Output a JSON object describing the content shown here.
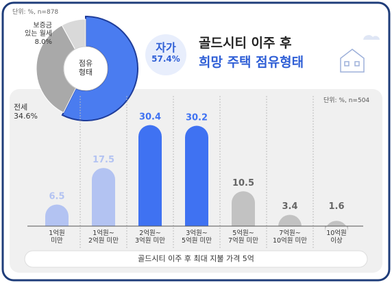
{
  "chart_data": [
    {
      "type": "pie",
      "title": "골드시티 이주 후",
      "subtitle": "희망 주택 점유형태",
      "unit": "단위: %, n=878",
      "center_label": "점유\n형태",
      "categories": [
        "자가",
        "전세",
        "보증금\n있는 월세"
      ],
      "values": [
        57.4,
        34.6,
        8.0
      ],
      "value_labels": [
        "57.4%",
        "34.6%",
        "8.0%"
      ],
      "colors": [
        "#4a7cf0",
        "#a9a9a9",
        "#d9d9d9"
      ]
    },
    {
      "type": "bar",
      "unit": "단위: %, n=504",
      "x_label": "골드시티 이주 후 최대 지불 가격 5억",
      "categories": [
        "1억원\n미만",
        "1억원~\n2억원 미만",
        "2억원~\n3억원 미만",
        "3억원~\n5억원 미만",
        "5억원~\n7억원 미만",
        "7억원~\n10억원 미만",
        "10억원\n이상"
      ],
      "values": [
        6.5,
        17.5,
        30.4,
        30.2,
        10.5,
        3.4,
        1.6
      ],
      "colors": [
        "#b3c3f2",
        "#b3c3f2",
        "#3f72f2",
        "#3f72f2",
        "#c2c2c2",
        "#c2c2c2",
        "#c2c2c2"
      ]
    }
  ]
}
